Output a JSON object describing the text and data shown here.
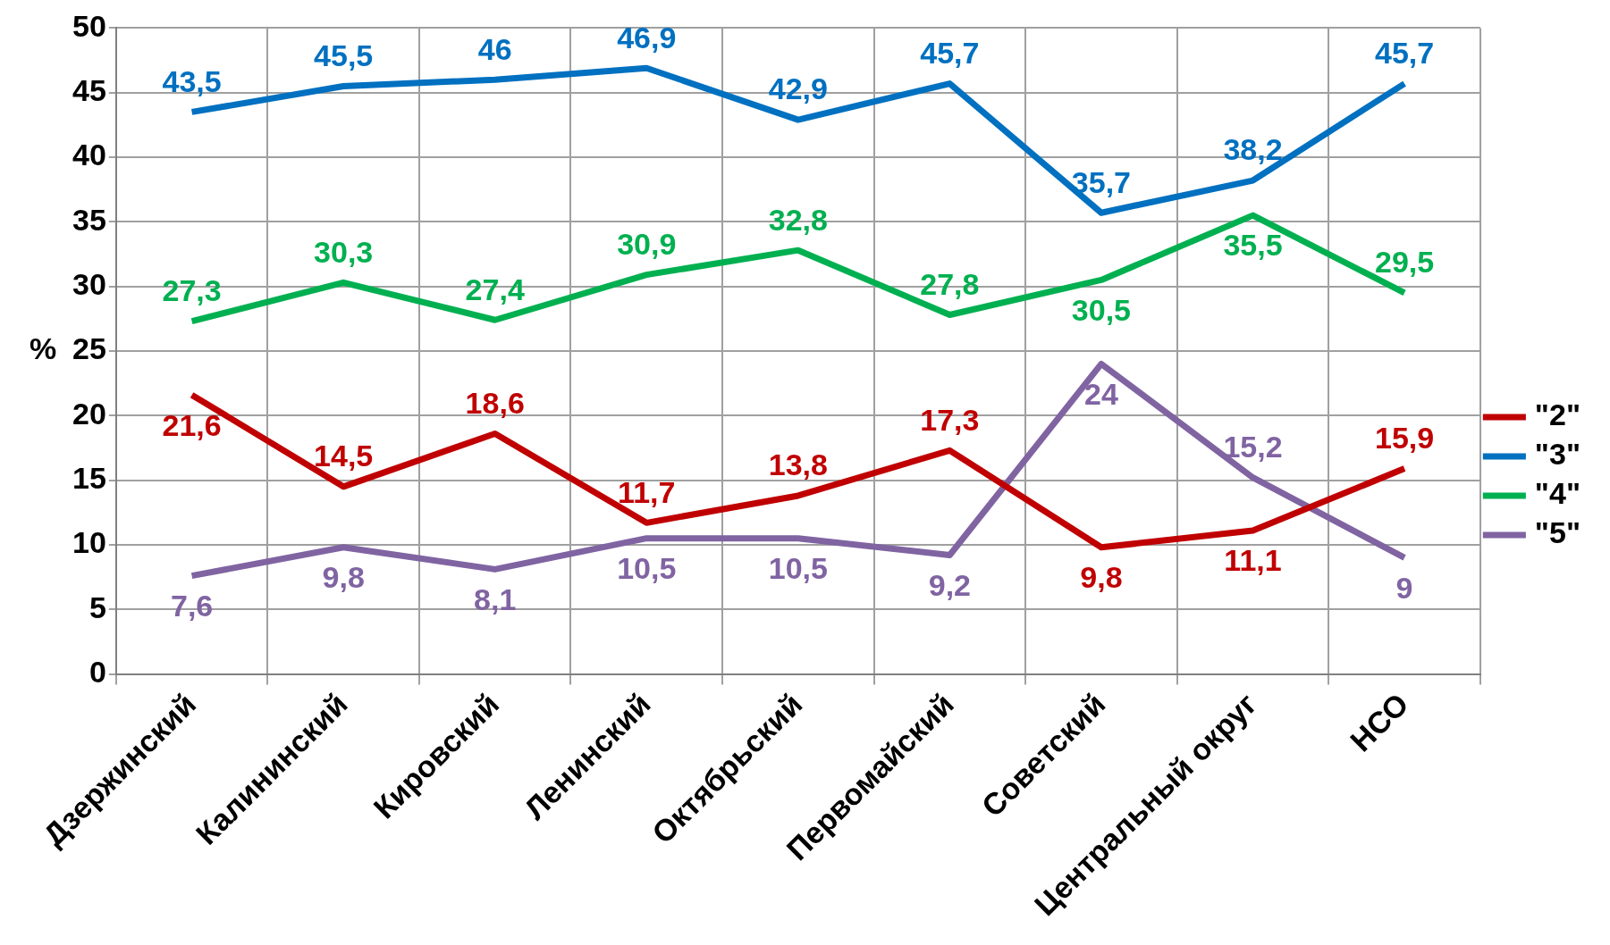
{
  "chart_data": {
    "type": "line",
    "ylabel": "%",
    "categories": [
      "Дзержинский",
      "Калининский",
      "Кировский",
      "Ленинский",
      "Октябрьский",
      "Первомайский",
      "Советский",
      "Центральный округ",
      "НСО"
    ],
    "ylim": [
      0,
      50
    ],
    "yticks": [
      0,
      5,
      10,
      15,
      20,
      25,
      30,
      35,
      40,
      45,
      50
    ],
    "grid": true,
    "legend": "right",
    "marker": "none",
    "series": [
      {
        "name": "\"2\"",
        "color": "#c00000",
        "values": [
          21.6,
          14.5,
          18.6,
          11.7,
          13.8,
          17.3,
          9.8,
          11.1,
          15.9
        ],
        "value_labels": [
          "21,6",
          "14,5",
          "18,6",
          "11,7",
          "13,8",
          "17,3",
          "9,8",
          "11,1",
          "15,9"
        ]
      },
      {
        "name": "\"3\"",
        "color": "#0070c0",
        "values": [
          43.5,
          45.5,
          46,
          46.9,
          42.9,
          45.7,
          35.7,
          38.2,
          45.7
        ],
        "value_labels": [
          "43,5",
          "45,5",
          "46",
          "46,9",
          "42,9",
          "45,7",
          "35,7",
          "38,2",
          "45,7"
        ]
      },
      {
        "name": "\"4\"",
        "color": "#00b050",
        "values": [
          27.3,
          30.3,
          27.4,
          30.9,
          32.8,
          27.8,
          30.5,
          35.5,
          29.5
        ],
        "value_labels": [
          "27,3",
          "30,3",
          "27,4",
          "30,9",
          "32,8",
          "27,8",
          "30,5",
          "35,5",
          "29,5"
        ]
      },
      {
        "name": "\"5\"",
        "color": "#8064a2",
        "values": [
          7.6,
          9.8,
          8.1,
          10.5,
          10.5,
          9.2,
          24,
          15.2,
          9
        ],
        "value_labels": [
          "7,6",
          "9,8",
          "8,1",
          "10,5",
          "10,5",
          "9,2",
          "24",
          "15,2",
          "9"
        ]
      }
    ]
  }
}
